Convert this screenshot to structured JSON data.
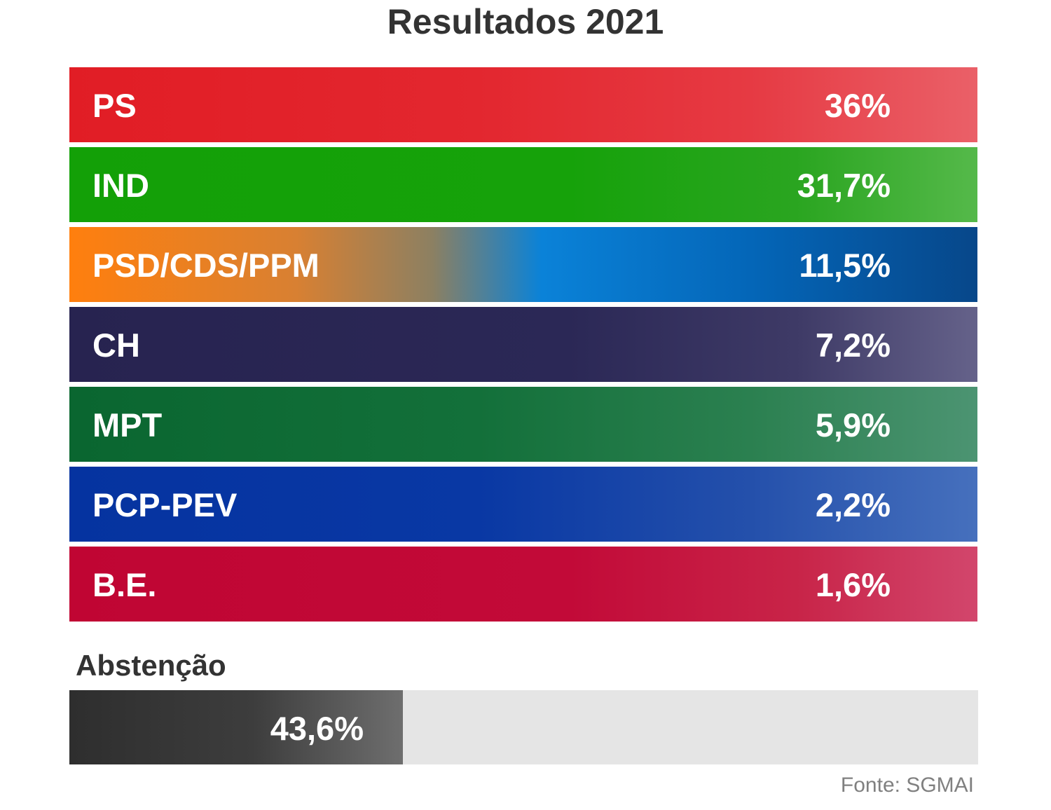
{
  "chart_data": {
    "type": "bar",
    "title": "Resultados 2021",
    "categories": [
      "PS",
      "IND",
      "PSD/CDS/PPM",
      "CH",
      "MPT",
      "PCP-PEV",
      "B.E."
    ],
    "values": [
      36,
      31.7,
      11.5,
      7.2,
      5.9,
      2.2,
      1.6
    ],
    "value_labels": [
      "36%",
      "31,7%",
      "11,5%",
      "7,2%",
      "5,9%",
      "2,2%",
      "1,6%"
    ],
    "colors": [
      "#e21f26",
      "#14a00a",
      "#ff7f0e",
      "#272350",
      "#0b6831",
      "#0532a0",
      "#c10533"
    ],
    "unit": "%",
    "xlabel": "",
    "ylabel": "",
    "legend": "none",
    "grid": false
  },
  "abstention": {
    "label": "Abstenção",
    "value": 43.6,
    "value_label": "43,6%",
    "max": 118.9
  },
  "source": "Fonte: SGMAI"
}
